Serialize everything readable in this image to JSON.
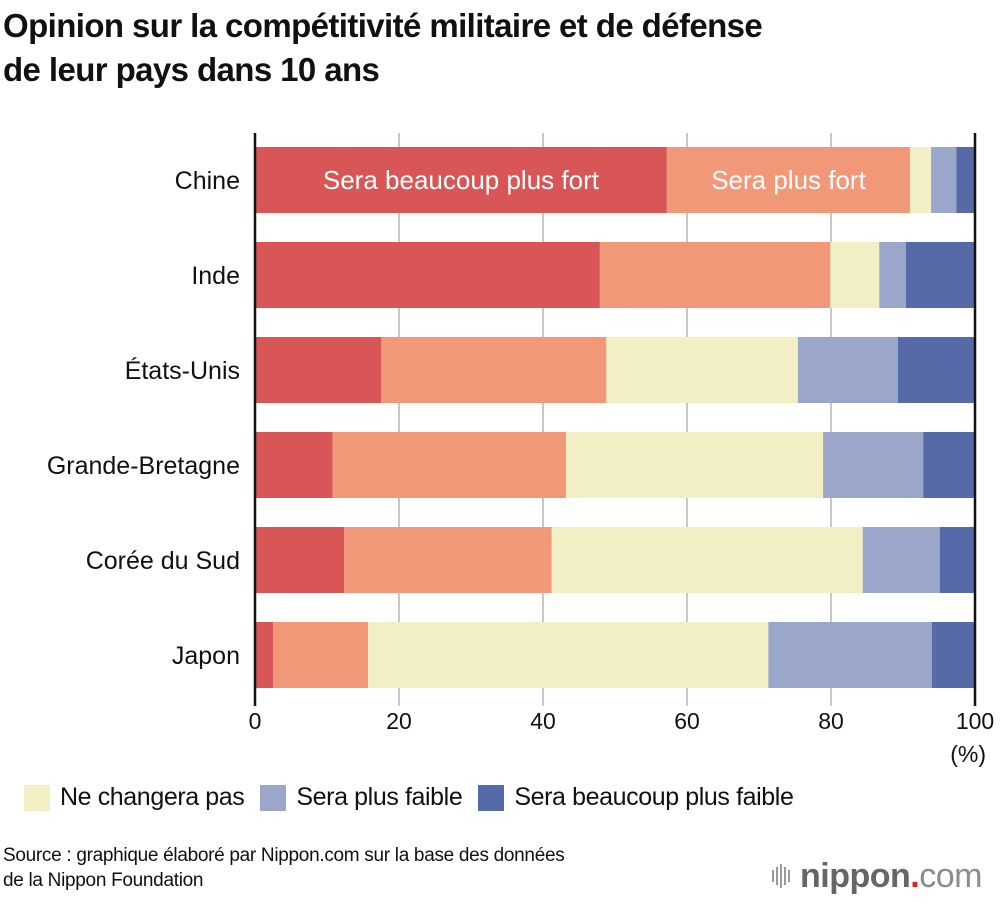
{
  "title_line1": "Opinion sur la compétitivité militaire et de défense",
  "title_line2": "de leur pays dans 10 ans",
  "chart_data": {
    "type": "bar",
    "orientation": "horizontal",
    "stacked": true,
    "title": "Opinion sur la compétitivité militaire et de défense de leur pays dans 10 ans",
    "xlabel": "",
    "unit_label": "(%)",
    "xlim": [
      0,
      100
    ],
    "xticks": [
      0,
      20,
      40,
      60,
      80,
      100
    ],
    "grid": true,
    "categories": [
      "Chine",
      "Inde",
      "États-Unis",
      "Grande-Bretagne",
      "Corée du Sud",
      "Japon"
    ],
    "series": [
      {
        "name": "Sera beaucoup plus fort",
        "color": "#d95656",
        "values": [
          57.2,
          47.9,
          17.5,
          10.8,
          12.4,
          2.5
        ]
      },
      {
        "name": "Sera plus fort",
        "color": "#f09878",
        "values": [
          33.8,
          32.0,
          31.3,
          32.4,
          28.8,
          13.2
        ]
      },
      {
        "name": "Ne changera pas",
        "color": "#f2efc5",
        "values": [
          2.9,
          6.8,
          26.6,
          35.7,
          43.2,
          55.6
        ]
      },
      {
        "name": "Sera plus faible",
        "color": "#9aa7ca",
        "values": [
          3.5,
          3.7,
          13.9,
          13.9,
          10.7,
          22.7
        ]
      },
      {
        "name": "Sera beaucoup plus faible",
        "color": "#556aa6",
        "values": [
          2.6,
          9.6,
          10.7,
          7.2,
          4.9,
          6.0
        ]
      }
    ],
    "inline_labels": [
      {
        "category": "Chine",
        "series": "Sera beaucoup plus fort",
        "text": "Sera beaucoup plus fort"
      },
      {
        "category": "Chine",
        "series": "Sera plus fort",
        "text": "Sera plus fort"
      }
    ],
    "legend": {
      "placement": "bottom",
      "entries": [
        "Ne changera pas",
        "Sera plus faible",
        "Sera beaucoup plus faible"
      ]
    }
  },
  "legend": [
    {
      "label": "Ne changera pas",
      "color": "#f2efc5"
    },
    {
      "label": "Sera plus faible",
      "color": "#9aa7ca"
    },
    {
      "label": "Sera beaucoup plus faible",
      "color": "#556aa6"
    }
  ],
  "source_line1": "Source : graphique élaboré par Nippon.com sur la base des données",
  "source_line2": "de la Nippon Foundation",
  "logo": {
    "brand": "nippon",
    "dot": ".",
    "suffix": "com"
  }
}
